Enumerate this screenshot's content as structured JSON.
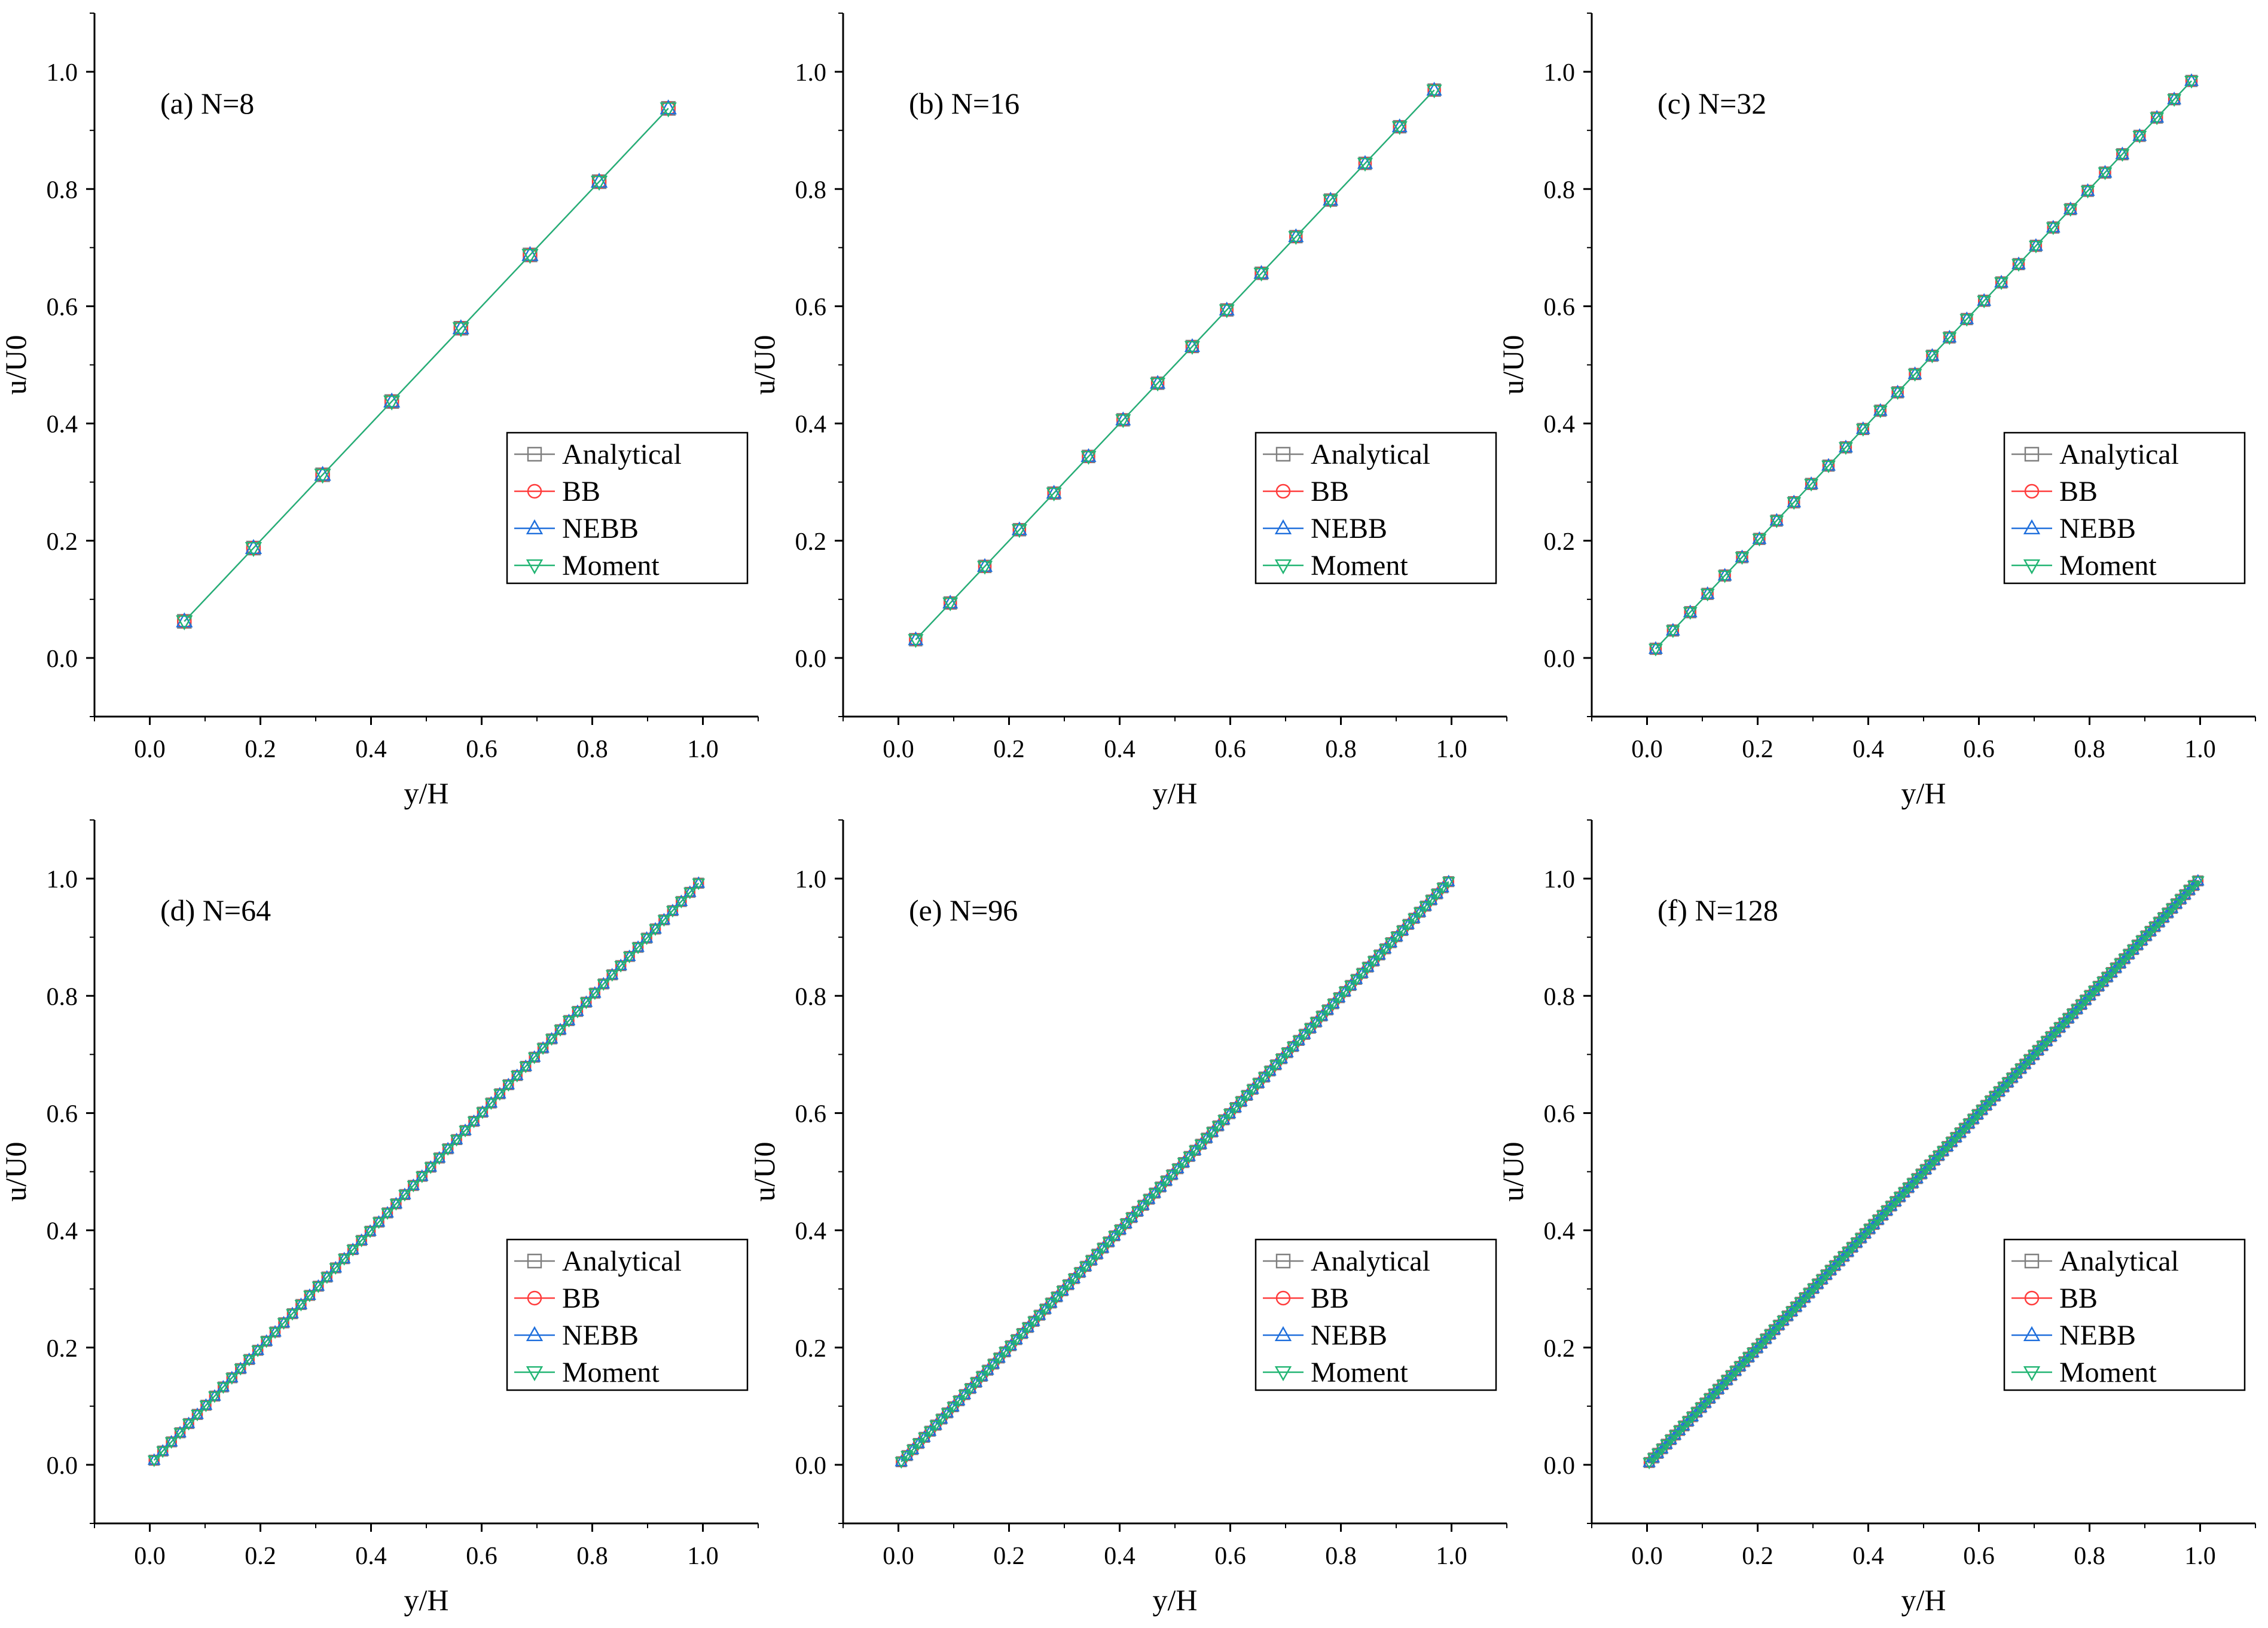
{
  "figure": {
    "series_colors": {
      "Analytical": "#7f7f7f",
      "BB": "#ff3b3b",
      "NEBB": "#1f6fdc",
      "Moment": "#22b573"
    },
    "marker_shapes": {
      "Analytical": "square",
      "BB": "circle",
      "NEBB": "triangle-up",
      "Moment": "triangle-down"
    }
  },
  "chart_data": [
    {
      "type": "line",
      "panel_label": "(a) N=8",
      "N": 8,
      "xlabel": "y/H",
      "ylabel": "u/U0",
      "xlim": [
        -0.1,
        1.1
      ],
      "ylim": [
        -0.1,
        1.1
      ],
      "xticks": [
        "0.0",
        "0.2",
        "0.4",
        "0.6",
        "0.8",
        "1.0"
      ],
      "yticks": [
        "0.0",
        "0.2",
        "0.4",
        "0.6",
        "0.8",
        "1.0"
      ],
      "x": [
        0.0625,
        0.1875,
        0.3125,
        0.4375,
        0.5625,
        0.6875,
        0.8125,
        0.9375
      ],
      "series": [
        {
          "name": "Analytical",
          "values": [
            0.0625,
            0.1875,
            0.3125,
            0.4375,
            0.5625,
            0.6875,
            0.8125,
            0.9375
          ]
        },
        {
          "name": "BB",
          "values": [
            0.0625,
            0.1875,
            0.3125,
            0.4375,
            0.5625,
            0.6875,
            0.8125,
            0.9375
          ]
        },
        {
          "name": "NEBB",
          "values": [
            0.0625,
            0.1875,
            0.3125,
            0.4375,
            0.5625,
            0.6875,
            0.8125,
            0.9375
          ]
        },
        {
          "name": "Moment",
          "values": [
            0.0625,
            0.1875,
            0.3125,
            0.4375,
            0.5625,
            0.6875,
            0.8125,
            0.9375
          ]
        }
      ],
      "legend": [
        "Analytical",
        "BB",
        "NEBB",
        "Moment"
      ],
      "legend_position": "lower-right",
      "grid": false
    },
    {
      "type": "line",
      "panel_label": "(b) N=16",
      "N": 16,
      "xlabel": "y/H",
      "ylabel": "u/U0",
      "xlim": [
        -0.1,
        1.1
      ],
      "ylim": [
        -0.1,
        1.1
      ],
      "xticks": [
        "0.0",
        "0.2",
        "0.4",
        "0.6",
        "0.8",
        "1.0"
      ],
      "yticks": [
        "0.0",
        "0.2",
        "0.4",
        "0.6",
        "0.8",
        "1.0"
      ],
      "x": [
        0.03125,
        0.09375,
        0.15625,
        0.21875,
        0.28125,
        0.34375,
        0.40625,
        0.46875,
        0.53125,
        0.59375,
        0.65625,
        0.71875,
        0.78125,
        0.84375,
        0.90625,
        0.96875
      ],
      "series": [
        {
          "name": "Analytical",
          "values": [
            0.03125,
            0.09375,
            0.15625,
            0.21875,
            0.28125,
            0.34375,
            0.40625,
            0.46875,
            0.53125,
            0.59375,
            0.65625,
            0.71875,
            0.78125,
            0.84375,
            0.90625,
            0.96875
          ]
        },
        {
          "name": "BB",
          "values": [
            0.03125,
            0.09375,
            0.15625,
            0.21875,
            0.28125,
            0.34375,
            0.40625,
            0.46875,
            0.53125,
            0.59375,
            0.65625,
            0.71875,
            0.78125,
            0.84375,
            0.90625,
            0.96875
          ]
        },
        {
          "name": "NEBB",
          "values": [
            0.03125,
            0.09375,
            0.15625,
            0.21875,
            0.28125,
            0.34375,
            0.40625,
            0.46875,
            0.53125,
            0.59375,
            0.65625,
            0.71875,
            0.78125,
            0.84375,
            0.90625,
            0.96875
          ]
        },
        {
          "name": "Moment",
          "values": [
            0.03125,
            0.09375,
            0.15625,
            0.21875,
            0.28125,
            0.34375,
            0.40625,
            0.46875,
            0.53125,
            0.59375,
            0.65625,
            0.71875,
            0.78125,
            0.84375,
            0.90625,
            0.96875
          ]
        }
      ],
      "legend": [
        "Analytical",
        "BB",
        "NEBB",
        "Moment"
      ],
      "legend_position": "lower-right",
      "grid": false
    },
    {
      "type": "line",
      "panel_label": "(c) N=32",
      "N": 32,
      "xlabel": "y/H",
      "ylabel": "u/U0",
      "xlim": [
        -0.1,
        1.1
      ],
      "ylim": [
        -0.1,
        1.1
      ],
      "xticks": [
        "0.0",
        "0.2",
        "0.4",
        "0.6",
        "0.8",
        "1.0"
      ],
      "yticks": [
        "0.0",
        "0.2",
        "0.4",
        "0.6",
        "0.8",
        "1.0"
      ],
      "x": [
        0.015625,
        0.046875,
        0.078125,
        0.109375,
        0.140625,
        0.171875,
        0.203125,
        0.234375,
        0.265625,
        0.296875,
        0.328125,
        0.359375,
        0.390625,
        0.421875,
        0.453125,
        0.484375,
        0.515625,
        0.546875,
        0.578125,
        0.609375,
        0.640625,
        0.671875,
        0.703125,
        0.734375,
        0.765625,
        0.796875,
        0.828125,
        0.859375,
        0.890625,
        0.921875,
        0.953125,
        0.984375
      ],
      "series": [
        {
          "name": "Analytical",
          "values": [
            0.015625,
            0.046875,
            0.078125,
            0.109375,
            0.140625,
            0.171875,
            0.203125,
            0.234375,
            0.265625,
            0.296875,
            0.328125,
            0.359375,
            0.390625,
            0.421875,
            0.453125,
            0.484375,
            0.515625,
            0.546875,
            0.578125,
            0.609375,
            0.640625,
            0.671875,
            0.703125,
            0.734375,
            0.765625,
            0.796875,
            0.828125,
            0.859375,
            0.890625,
            0.921875,
            0.953125,
            0.984375
          ]
        },
        {
          "name": "BB",
          "values": [
            0.015625,
            0.046875,
            0.078125,
            0.109375,
            0.140625,
            0.171875,
            0.203125,
            0.234375,
            0.265625,
            0.296875,
            0.328125,
            0.359375,
            0.390625,
            0.421875,
            0.453125,
            0.484375,
            0.515625,
            0.546875,
            0.578125,
            0.609375,
            0.640625,
            0.671875,
            0.703125,
            0.734375,
            0.765625,
            0.796875,
            0.828125,
            0.859375,
            0.890625,
            0.921875,
            0.953125,
            0.984375
          ]
        },
        {
          "name": "NEBB",
          "values": [
            0.015625,
            0.046875,
            0.078125,
            0.109375,
            0.140625,
            0.171875,
            0.203125,
            0.234375,
            0.265625,
            0.296875,
            0.328125,
            0.359375,
            0.390625,
            0.421875,
            0.453125,
            0.484375,
            0.515625,
            0.546875,
            0.578125,
            0.609375,
            0.640625,
            0.671875,
            0.703125,
            0.734375,
            0.765625,
            0.796875,
            0.828125,
            0.859375,
            0.890625,
            0.921875,
            0.953125,
            0.984375
          ]
        },
        {
          "name": "Moment",
          "values": [
            0.015625,
            0.046875,
            0.078125,
            0.109375,
            0.140625,
            0.171875,
            0.203125,
            0.234375,
            0.265625,
            0.296875,
            0.328125,
            0.359375,
            0.390625,
            0.421875,
            0.453125,
            0.484375,
            0.515625,
            0.546875,
            0.578125,
            0.609375,
            0.640625,
            0.671875,
            0.703125,
            0.734375,
            0.765625,
            0.796875,
            0.828125,
            0.859375,
            0.890625,
            0.921875,
            0.953125,
            0.984375
          ]
        }
      ],
      "legend": [
        "Analytical",
        "BB",
        "NEBB",
        "Moment"
      ],
      "legend_position": "lower-right",
      "grid": false
    },
    {
      "type": "line",
      "panel_label": "(d) N=64",
      "N": 64,
      "xlabel": "y/H",
      "ylabel": "u/U0",
      "xlim": [
        -0.1,
        1.1
      ],
      "ylim": [
        -0.1,
        1.1
      ],
      "xticks": [
        "0.0",
        "0.2",
        "0.4",
        "0.6",
        "0.8",
        "1.0"
      ],
      "yticks": [
        "0.0",
        "0.2",
        "0.4",
        "0.6",
        "0.8",
        "1.0"
      ],
      "x_rule": "(i + 0.5) / N for i = 0 .. N-1",
      "y_rule": "u/U0 = y/H (all series coincide)",
      "series": [
        {
          "name": "Analytical"
        },
        {
          "name": "BB"
        },
        {
          "name": "NEBB"
        },
        {
          "name": "Moment"
        }
      ],
      "legend": [
        "Analytical",
        "BB",
        "NEBB",
        "Moment"
      ],
      "legend_position": "lower-right",
      "grid": false
    },
    {
      "type": "line",
      "panel_label": "(e) N=96",
      "N": 96,
      "xlabel": "y/H",
      "ylabel": "u/U0",
      "xlim": [
        -0.1,
        1.1
      ],
      "ylim": [
        -0.1,
        1.1
      ],
      "xticks": [
        "0.0",
        "0.2",
        "0.4",
        "0.6",
        "0.8",
        "1.0"
      ],
      "yticks": [
        "0.0",
        "0.2",
        "0.4",
        "0.6",
        "0.8",
        "1.0"
      ],
      "x_rule": "(i + 0.5) / N for i = 0 .. N-1",
      "y_rule": "u/U0 = y/H (all series coincide)",
      "series": [
        {
          "name": "Analytical"
        },
        {
          "name": "BB"
        },
        {
          "name": "NEBB"
        },
        {
          "name": "Moment"
        }
      ],
      "legend": [
        "Analytical",
        "BB",
        "NEBB",
        "Moment"
      ],
      "legend_position": "lower-right",
      "grid": false
    },
    {
      "type": "line",
      "panel_label": "(f) N=128",
      "N": 128,
      "xlabel": "y/H",
      "ylabel": "u/U0",
      "xlim": [
        -0.1,
        1.1
      ],
      "ylim": [
        -0.1,
        1.1
      ],
      "xticks": [
        "0.0",
        "0.2",
        "0.4",
        "0.6",
        "0.8",
        "1.0"
      ],
      "yticks": [
        "0.0",
        "0.2",
        "0.4",
        "0.6",
        "0.8",
        "1.0"
      ],
      "x_rule": "(i + 0.5) / N for i = 0 .. N-1",
      "y_rule": "u/U0 = y/H (all series coincide)",
      "series": [
        {
          "name": "Analytical"
        },
        {
          "name": "BB"
        },
        {
          "name": "NEBB"
        },
        {
          "name": "Moment"
        }
      ],
      "legend": [
        "Analytical",
        "BB",
        "NEBB",
        "Moment"
      ],
      "legend_position": "lower-right",
      "grid": false
    }
  ]
}
